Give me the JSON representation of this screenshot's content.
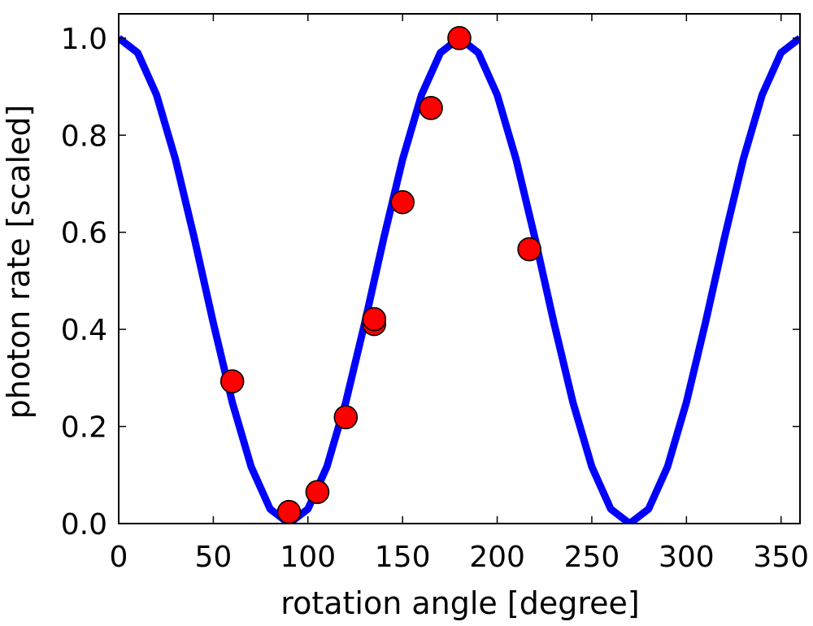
{
  "chart_data": {
    "type": "scatter",
    "title": "",
    "xlabel": "rotation angle [degree]",
    "ylabel": "photon rate [scaled]",
    "xlim": [
      0,
      360
    ],
    "ylim": [
      0,
      1.05
    ],
    "x_ticks": [
      0,
      50,
      100,
      150,
      200,
      250,
      300,
      350
    ],
    "x_tick_labels": [
      "0",
      "50",
      "100",
      "150",
      "200",
      "250",
      "300",
      "350"
    ],
    "y_ticks": [
      0.0,
      0.2,
      0.4,
      0.6,
      0.8,
      1.0
    ],
    "y_tick_labels": [
      "0.0",
      "0.2",
      "0.4",
      "0.6",
      "0.8",
      "1.0"
    ],
    "grid": false,
    "series": [
      {
        "kind": "line",
        "color": "#0000ff",
        "x": [
          0,
          10,
          20,
          30,
          40,
          50,
          60,
          70,
          80,
          90,
          100,
          110,
          120,
          130,
          140,
          150,
          160,
          170,
          180,
          190,
          200,
          210,
          220,
          230,
          240,
          250,
          260,
          270,
          280,
          290,
          300,
          310,
          320,
          330,
          340,
          350,
          360
        ],
        "y": [
          1.0,
          0.97,
          0.883,
          0.75,
          0.587,
          0.413,
          0.25,
          0.117,
          0.03,
          0.0,
          0.03,
          0.117,
          0.25,
          0.413,
          0.587,
          0.75,
          0.883,
          0.97,
          1.0,
          0.97,
          0.883,
          0.75,
          0.587,
          0.413,
          0.25,
          0.117,
          0.03,
          0.0,
          0.03,
          0.117,
          0.25,
          0.413,
          0.587,
          0.75,
          0.883,
          0.97,
          1.0
        ]
      },
      {
        "kind": "points",
        "color": "#ff0000",
        "edge_color": "#000000",
        "x": [
          60,
          90,
          105,
          120,
          135,
          135,
          150,
          165,
          180,
          217
        ],
        "y": [
          0.293,
          0.024,
          0.065,
          0.219,
          0.411,
          0.421,
          0.662,
          0.856,
          1.0,
          0.565
        ]
      }
    ]
  }
}
